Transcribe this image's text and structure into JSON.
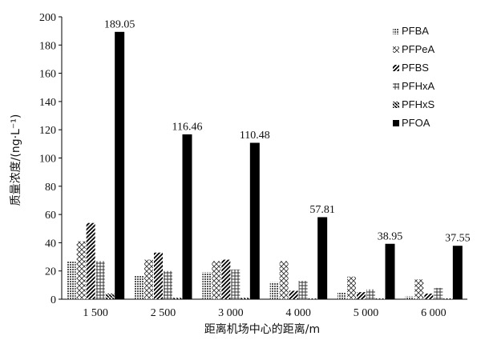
{
  "chart_data": {
    "type": "bar",
    "title": "",
    "xlabel": "距离机场中心的距离/m",
    "ylabel": "质量浓度/(ng·L⁻¹)",
    "ylim": [
      0,
      200
    ],
    "yticks": [
      0,
      20,
      40,
      60,
      80,
      100,
      120,
      140,
      160,
      180,
      200
    ],
    "categories": [
      "1 500",
      "2 500",
      "3 000",
      "4 000",
      "5 000",
      "6 000"
    ],
    "legend_position": "top-right",
    "grid": false,
    "series": [
      {
        "name": "PFBA",
        "pattern": "dots",
        "values": [
          27,
          17,
          19,
          12,
          5,
          2
        ]
      },
      {
        "name": "PFPeA",
        "pattern": "cross",
        "values": [
          41,
          28,
          27,
          27,
          16,
          14
        ]
      },
      {
        "name": "PFBS",
        "pattern": "diagonal",
        "values": [
          54,
          33,
          28,
          6,
          5,
          4
        ]
      },
      {
        "name": "PFHxA",
        "pattern": "grid",
        "values": [
          27,
          20,
          21,
          13,
          7,
          8
        ]
      },
      {
        "name": "PFHxS",
        "pattern": "backdiag",
        "values": [
          4,
          1,
          1,
          0.5,
          0.5,
          0.5
        ]
      },
      {
        "name": "PFOA",
        "pattern": "solid",
        "values": [
          189.05,
          116.46,
          110.48,
          57.81,
          38.95,
          37.55
        ]
      }
    ],
    "data_labels": [
      "189.05",
      "116.46",
      "110.48",
      "57.81",
      "38.95",
      "37.55"
    ]
  }
}
